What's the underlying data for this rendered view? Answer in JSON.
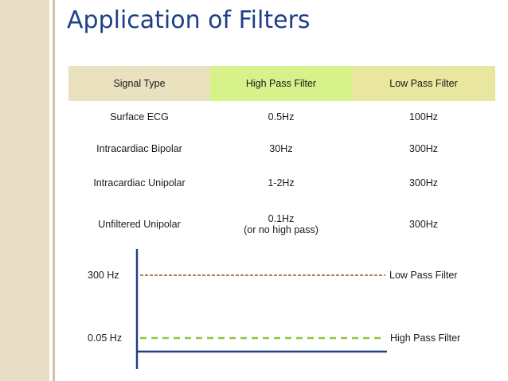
{
  "slide": {
    "title": "Application of Filters"
  },
  "table": {
    "headers": [
      "Signal Type",
      "High Pass Filter",
      "Low Pass Filter"
    ],
    "rows": [
      {
        "signal": "Surface ECG",
        "high": "0.5Hz",
        "low": "100Hz"
      },
      {
        "signal": "Intracardiac Bipolar",
        "high": "30Hz",
        "low": "300Hz"
      },
      {
        "signal": "Intracardiac Unipolar",
        "high": "1-2Hz",
        "low": "300Hz"
      },
      {
        "signal": "Unfiltered Unipolar",
        "high": "0.1Hz",
        "high_note": "(or no high pass)",
        "low": "300Hz"
      }
    ]
  },
  "diagram": {
    "upper_level": "300 Hz",
    "lower_level": "0.05 Hz",
    "upper_line_label": "Low Pass Filter",
    "lower_line_label": "High Pass Filter",
    "upper_line_color": "#a0522d",
    "lower_line_color": "#8dc63f"
  },
  "colors": {
    "title": "#1f3f86",
    "header_signal": "#eae1bf",
    "header_high": "#d7f28a",
    "header_low": "#e9e6a0",
    "axis": "#1f3f86",
    "left_band": "#e9dcc6"
  }
}
